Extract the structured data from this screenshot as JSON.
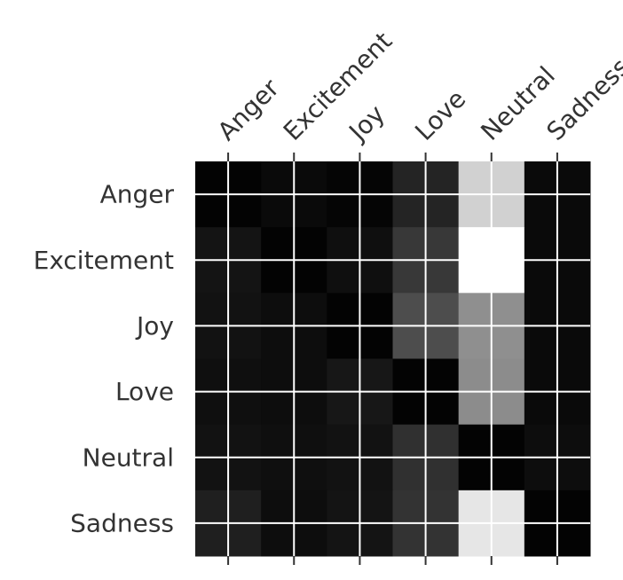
{
  "chart_data": {
    "type": "heatmap",
    "title": "",
    "xlabel": "",
    "ylabel": "",
    "x_labels": [
      "Anger",
      "Excitement",
      "Joy",
      "Love",
      "Neutral",
      "Sadness"
    ],
    "y_labels": [
      "Anger",
      "Excitement",
      "Joy",
      "Love",
      "Neutral",
      "Sadness"
    ],
    "colormap": "gray",
    "grid": true,
    "colorbar": false,
    "values": [
      [
        0.01,
        0.04,
        0.02,
        0.14,
        0.82,
        0.04
      ],
      [
        0.08,
        0.01,
        0.06,
        0.22,
        1.0,
        0.04
      ],
      [
        0.07,
        0.05,
        0.01,
        0.3,
        0.56,
        0.04
      ],
      [
        0.06,
        0.05,
        0.09,
        0.01,
        0.55,
        0.04
      ],
      [
        0.07,
        0.06,
        0.07,
        0.19,
        0.01,
        0.05
      ],
      [
        0.12,
        0.05,
        0.08,
        0.2,
        0.9,
        0.01
      ]
    ]
  }
}
